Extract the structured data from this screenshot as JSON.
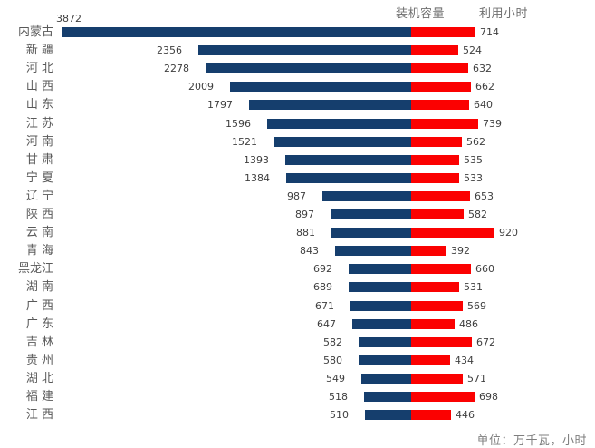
{
  "legend": {
    "capacity": "装机容量",
    "hours": "利用小时"
  },
  "footer": {
    "unit_note": "单位：万千瓦，小时"
  },
  "colors": {
    "capacity_bar": "#153e6d",
    "hours_bar": "#fb0101",
    "value_label": "#3f3f3f",
    "category_label": "#595959",
    "legend_text": "#6f6f6f",
    "footer_text": "#7f7f7f"
  },
  "chart_data": {
    "type": "bar",
    "variant": "diverging-horizontal",
    "title": "",
    "xlabel": "",
    "ylabel": "",
    "grid": false,
    "axes_visible": false,
    "legend_position": "top-right",
    "unit_note": "单位：万千瓦，小时",
    "categories": [
      "内蒙古",
      "新疆",
      "河北",
      "山西",
      "山东",
      "江苏",
      "河南",
      "甘肃",
      "宁夏",
      "辽宁",
      "陕西",
      "云南",
      "青海",
      "黑龙江",
      "湖南",
      "广西",
      "广东",
      "吉林",
      "贵州",
      "湖北",
      "福建",
      "江西"
    ],
    "category_display": [
      "内蒙古",
      "新 疆",
      "河 北",
      "山 西",
      "山 东",
      "江 苏",
      "河 南",
      "甘 肃",
      "宁 夏",
      "辽 宁",
      "陕 西",
      "云 南",
      "青 海",
      "黑龙江",
      "湖 南",
      "广 西",
      "广 东",
      "吉 林",
      "贵 州",
      "湖 北",
      "福 建",
      "江 西"
    ],
    "series": [
      {
        "name": "装机容量",
        "direction": "left",
        "color": "#153e6d",
        "values": [
          3872,
          2356,
          2278,
          2009,
          1797,
          1596,
          1521,
          1393,
          1384,
          987,
          897,
          881,
          843,
          692,
          689,
          671,
          647,
          582,
          580,
          549,
          518,
          510
        ]
      },
      {
        "name": "利用小时",
        "direction": "right",
        "color": "#fb0101",
        "values": [
          714,
          524,
          632,
          662,
          640,
          739,
          562,
          535,
          533,
          653,
          582,
          920,
          392,
          660,
          531,
          569,
          486,
          672,
          434,
          571,
          698,
          446
        ]
      }
    ]
  }
}
